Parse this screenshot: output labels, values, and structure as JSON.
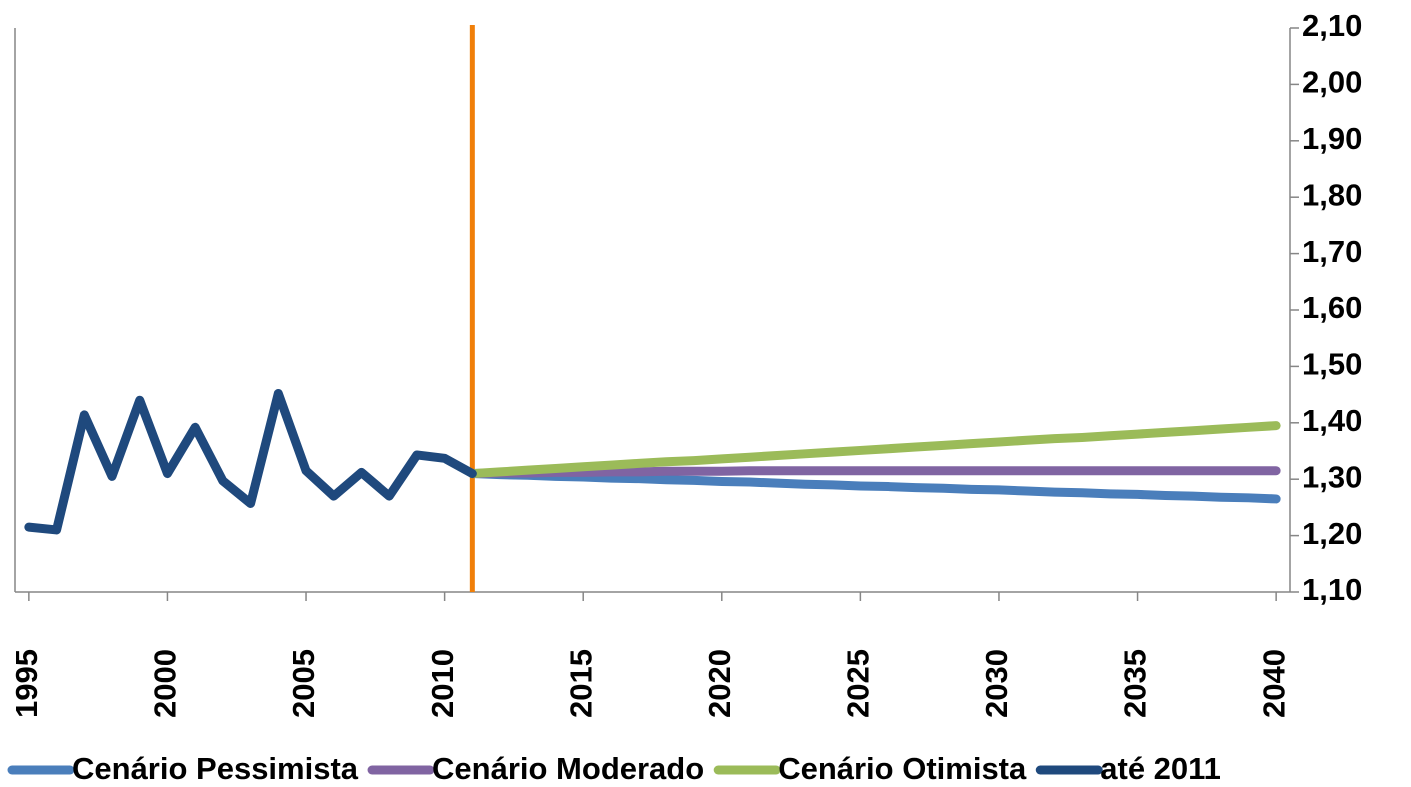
{
  "chart_data": {
    "type": "line",
    "x": [
      1995,
      1996,
      1997,
      1998,
      1999,
      2000,
      2001,
      2002,
      2003,
      2004,
      2005,
      2006,
      2007,
      2008,
      2009,
      2010,
      2011,
      2012,
      2013,
      2014,
      2015,
      2016,
      2017,
      2018,
      2019,
      2020,
      2021,
      2022,
      2023,
      2024,
      2025,
      2026,
      2027,
      2028,
      2029,
      2030,
      2031,
      2032,
      2033,
      2034,
      2035,
      2036,
      2037,
      2038,
      2039,
      2040
    ],
    "xlim": [
      1994.5,
      2040.5
    ],
    "xticks": [
      1995,
      2000,
      2005,
      2010,
      2015,
      2020,
      2025,
      2030,
      2035,
      2040
    ],
    "ylim": [
      1.1,
      2.1
    ],
    "yticks": [
      {
        "value": 1.1,
        "label": "1,10"
      },
      {
        "value": 1.2,
        "label": "1,20"
      },
      {
        "value": 1.3,
        "label": "1,30"
      },
      {
        "value": 1.4,
        "label": "1,40"
      },
      {
        "value": 1.5,
        "label": "1,50"
      },
      {
        "value": 1.6,
        "label": "1,60"
      },
      {
        "value": 1.7,
        "label": "1,70"
      },
      {
        "value": 1.8,
        "label": "1,80"
      },
      {
        "value": 1.9,
        "label": "1,90"
      },
      {
        "value": 2.0,
        "label": "2,00"
      },
      {
        "value": 2.1,
        "label": "2,10"
      }
    ],
    "y_axis_side": "right",
    "grid": false,
    "vline": 2011,
    "vline_color": "#f07f09",
    "legend": "bottom",
    "series": [
      {
        "name": "Cenário Pessimista",
        "color": "#4a7ebb",
        "values": [
          null,
          null,
          null,
          null,
          null,
          null,
          null,
          null,
          null,
          null,
          null,
          null,
          null,
          null,
          null,
          null,
          1.31,
          1.308,
          1.307,
          1.305,
          1.304,
          1.302,
          1.301,
          1.299,
          1.298,
          1.296,
          1.295,
          1.293,
          1.291,
          1.29,
          1.288,
          1.287,
          1.285,
          1.284,
          1.282,
          1.281,
          1.279,
          1.277,
          1.276,
          1.274,
          1.273,
          1.271,
          1.27,
          1.268,
          1.267,
          1.265
        ]
      },
      {
        "name": "Cenário Moderado",
        "color": "#8064a2",
        "values": [
          null,
          null,
          null,
          null,
          null,
          null,
          null,
          null,
          null,
          null,
          null,
          null,
          null,
          null,
          null,
          null,
          1.31,
          1.311,
          1.311,
          1.312,
          1.312,
          1.313,
          1.313,
          1.314,
          1.314,
          1.314,
          1.315,
          1.315,
          1.315,
          1.315,
          1.315,
          1.315,
          1.315,
          1.315,
          1.315,
          1.315,
          1.315,
          1.315,
          1.315,
          1.315,
          1.315,
          1.315,
          1.315,
          1.315,
          1.315,
          1.315
        ]
      },
      {
        "name": "Cenário Otimista",
        "color": "#9bbb59",
        "values": [
          null,
          null,
          null,
          null,
          null,
          null,
          null,
          null,
          null,
          null,
          null,
          null,
          null,
          null,
          null,
          null,
          1.31,
          1.313,
          1.316,
          1.319,
          1.322,
          1.325,
          1.328,
          1.331,
          1.333,
          1.336,
          1.339,
          1.342,
          1.345,
          1.348,
          1.351,
          1.354,
          1.357,
          1.36,
          1.363,
          1.366,
          1.369,
          1.372,
          1.374,
          1.377,
          1.38,
          1.383,
          1.386,
          1.389,
          1.392,
          1.395
        ]
      },
      {
        "name": "até 2011",
        "color": "#1f497d",
        "values": [
          1.215,
          1.21,
          1.414,
          1.305,
          1.44,
          1.31,
          1.392,
          1.297,
          1.257,
          1.452,
          1.315,
          1.27,
          1.312,
          1.27,
          1.343,
          1.337,
          1.31,
          null,
          null,
          null,
          null,
          null,
          null,
          null,
          null,
          null,
          null,
          null,
          null,
          null,
          null,
          null,
          null,
          null,
          null,
          null,
          null,
          null,
          null,
          null,
          null,
          null,
          null,
          null,
          null,
          null
        ]
      }
    ]
  }
}
